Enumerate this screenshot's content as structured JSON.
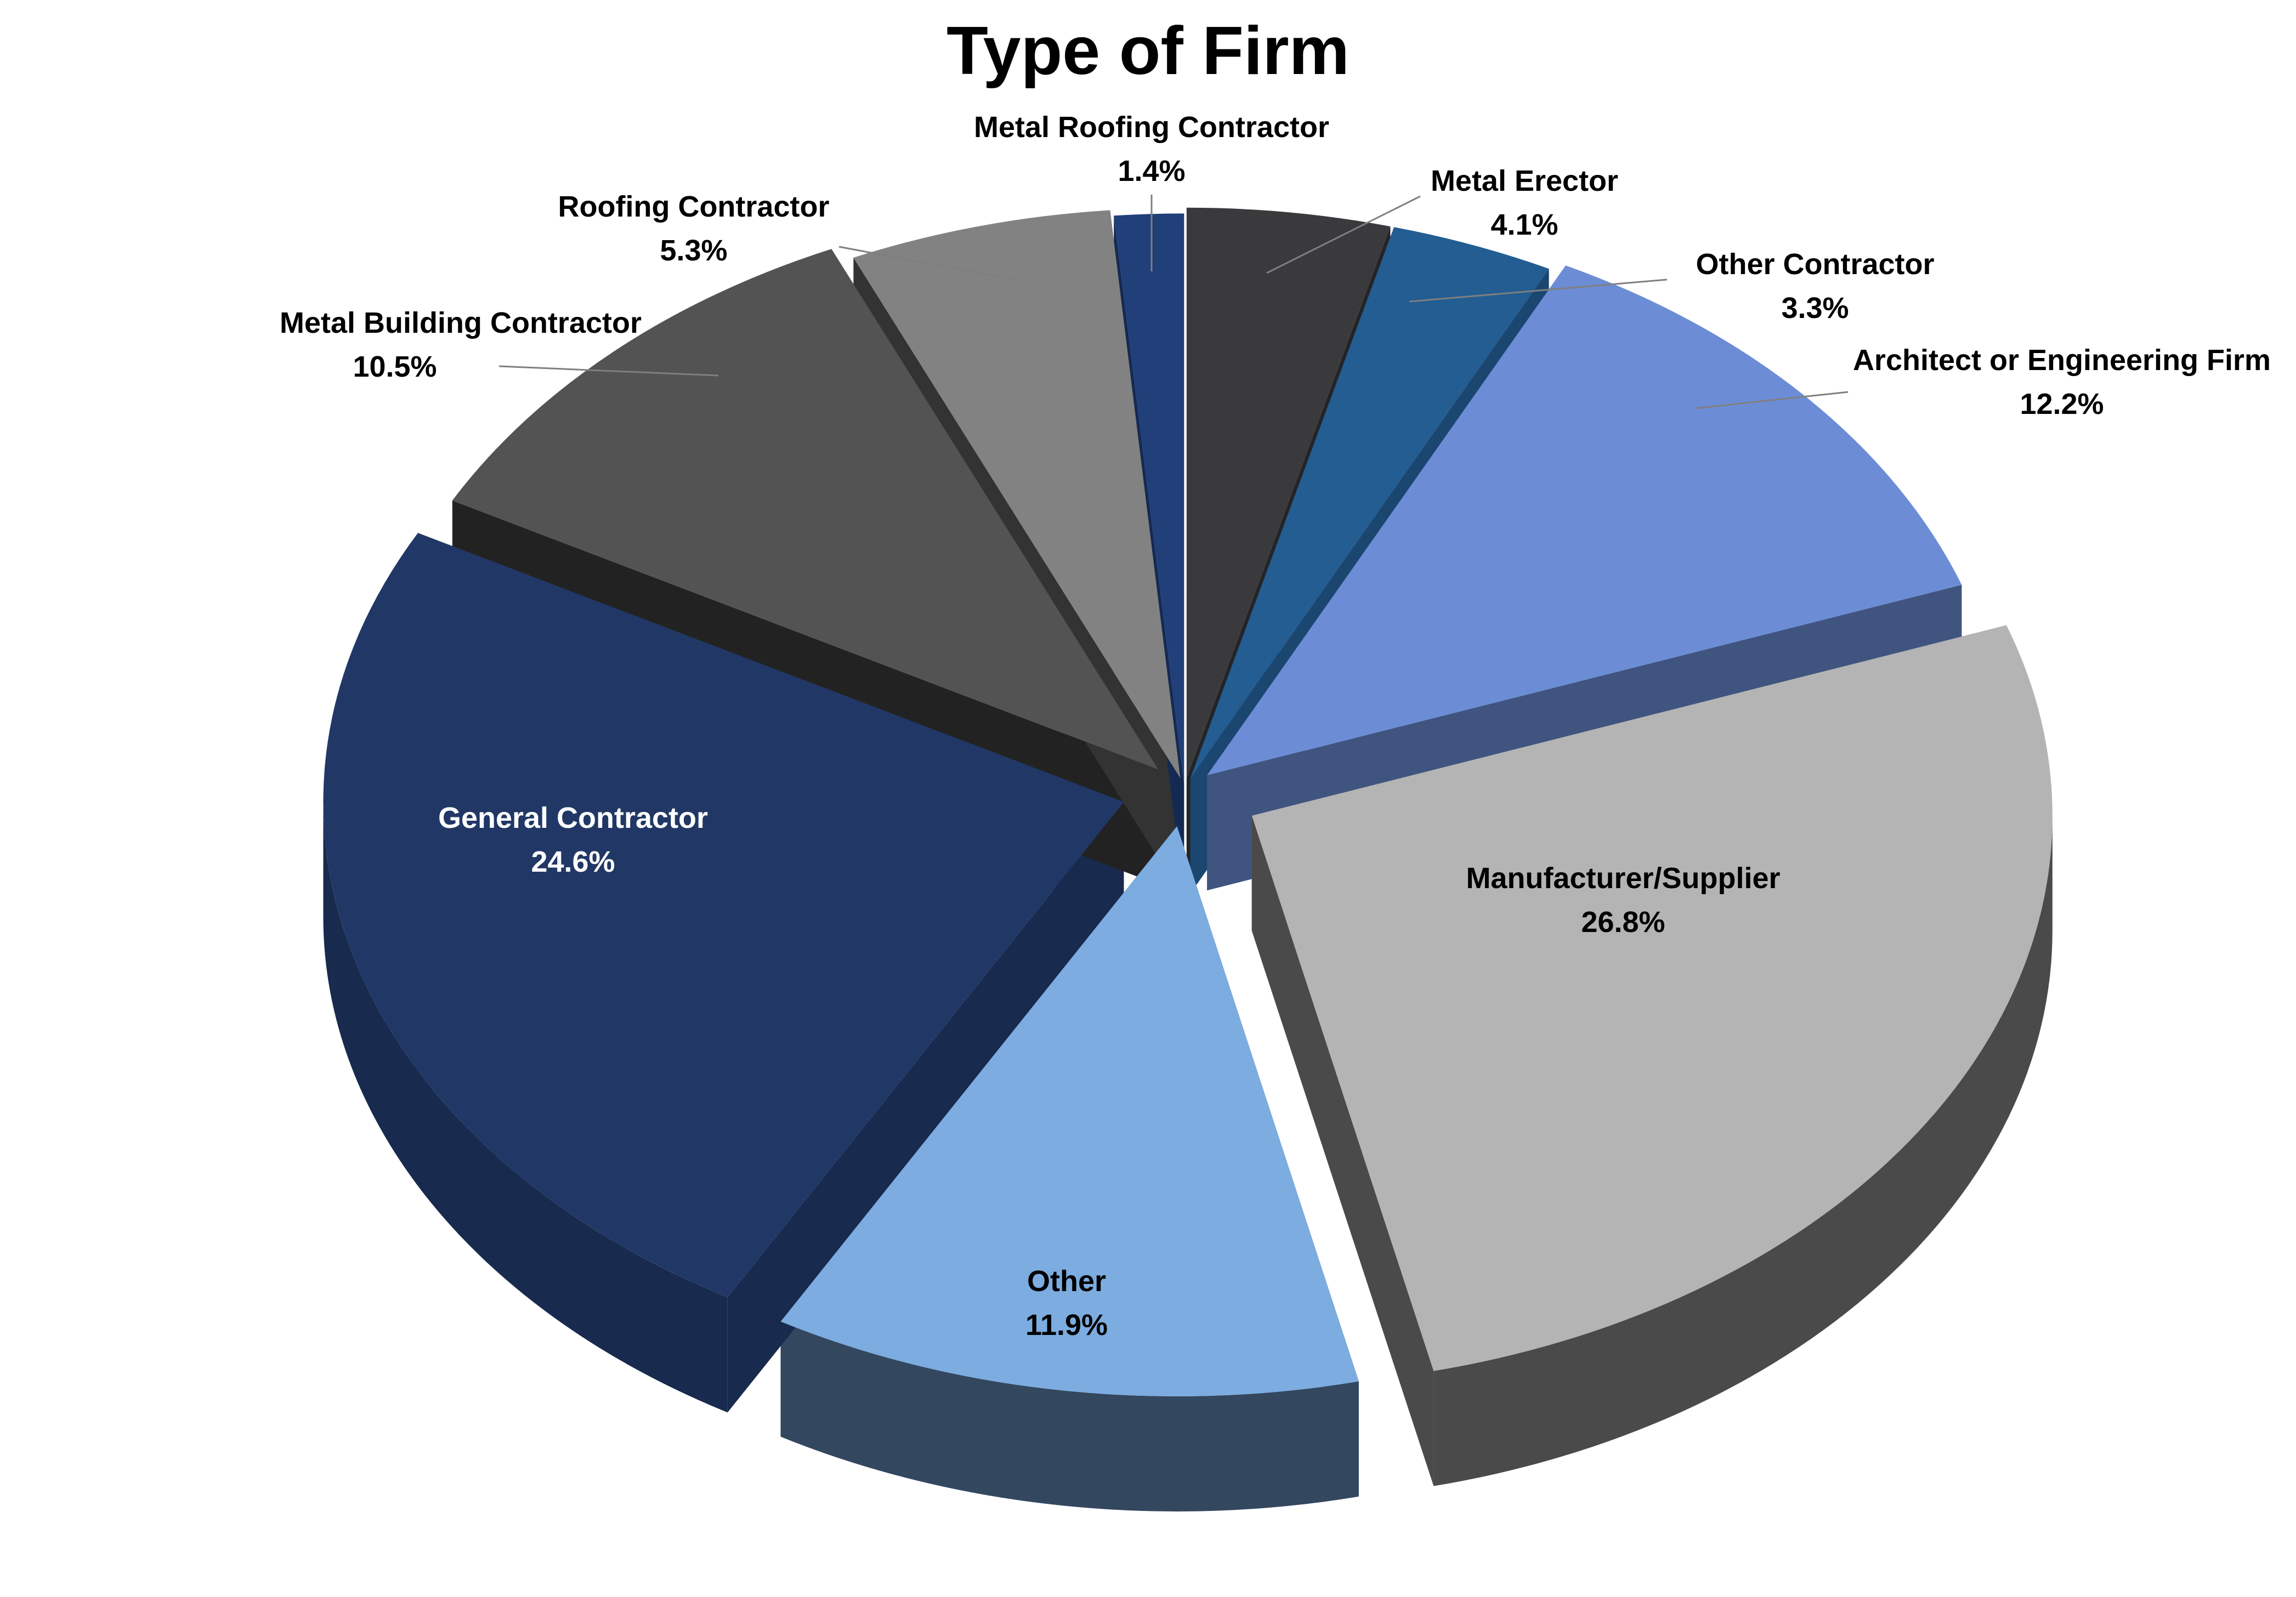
{
  "chart_data": {
    "type": "pie",
    "title": "Type of Firm",
    "style": "3d-exploded",
    "slices": [
      {
        "label": "Metal Erector",
        "value_label": "4.1%",
        "value": 4.1,
        "color": "#3a3a3c",
        "side_color": "#242426",
        "label_position": "outside"
      },
      {
        "label": "Other Contractor",
        "value_label": "3.3%",
        "value": 3.3,
        "color": "#235d92",
        "side_color": "#1a4670",
        "label_position": "outside"
      },
      {
        "label": "Architect or Engineering Firm",
        "value_label": "12.2%",
        "value": 12.2,
        "color": "#6c8dd6",
        "side_color": "#3f5580",
        "label_position": "outside"
      },
      {
        "label": "Manufacturer/Supplier",
        "value_label": "26.8%",
        "value": 26.8,
        "color": "#b4b4b4",
        "side_color": "#4a4a4a",
        "label_position": "inside"
      },
      {
        "label": "Other",
        "value_label": "11.9%",
        "value": 11.9,
        "color": "#7cace0",
        "side_color": "#33475f",
        "label_position": "inside"
      },
      {
        "label": "General Contractor",
        "value_label": "24.6%",
        "value": 24.6,
        "color": "#213866",
        "side_color": "#182a4d",
        "label_position": "inside"
      },
      {
        "label": "Metal Building Contractor",
        "value_label": "10.5%",
        "value": 10.5,
        "color": "#535353",
        "side_color": "#222222",
        "label_position": "outside"
      },
      {
        "label": "Roofing Contractor",
        "value_label": "5.3%",
        "value": 5.3,
        "color": "#828282",
        "side_color": "#333333",
        "label_position": "outside"
      },
      {
        "label": "Metal Roofing Contractor",
        "value_label": "1.4%",
        "value": 1.4,
        "color": "#213f78",
        "side_color": "#152a52",
        "label_position": "outside"
      }
    ]
  }
}
